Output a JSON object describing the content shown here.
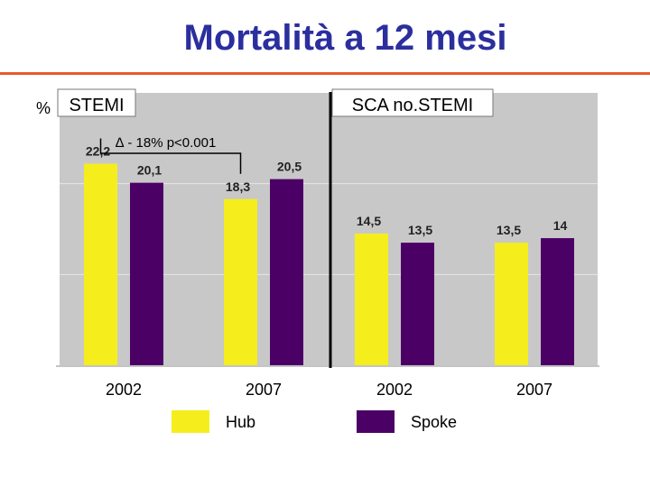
{
  "slide": {
    "title": "Mortalità a 12 mesi"
  },
  "chart_data": {
    "type": "bar",
    "y_unit_label": "%",
    "panels": [
      {
        "label": "STEMI",
        "categories": [
          "2002",
          "2007"
        ],
        "annotation": "∆ - 18% p<0.001",
        "series": [
          {
            "name": "Hub",
            "values": [
              22.2,
              18.3
            ],
            "labels": [
              "22,2",
              "18,3"
            ],
            "color": "#f5ee1c"
          },
          {
            "name": "Spoke",
            "values": [
              20.1,
              20.5
            ],
            "labels": [
              "20,1",
              "20,5"
            ],
            "color": "#4b0066"
          }
        ]
      },
      {
        "label": "SCA no.STEMI",
        "categories": [
          "2002",
          "2007"
        ],
        "series": [
          {
            "name": "Hub",
            "values": [
              14.5,
              13.5
            ],
            "labels": [
              "14,5",
              "13,5"
            ],
            "color": "#f5ee1c"
          },
          {
            "name": "Spoke",
            "values": [
              13.5,
              14
            ],
            "labels": [
              "13,5",
              "14"
            ],
            "color": "#4b0066"
          }
        ]
      }
    ],
    "legend": [
      {
        "name": "Hub",
        "color": "#f5ee1c"
      },
      {
        "name": "Spoke",
        "color": "#4b0066"
      }
    ],
    "ylim": [
      0,
      30
    ],
    "grid": true,
    "legend_position": "bottom",
    "plot_background": "#c8c8c8"
  }
}
